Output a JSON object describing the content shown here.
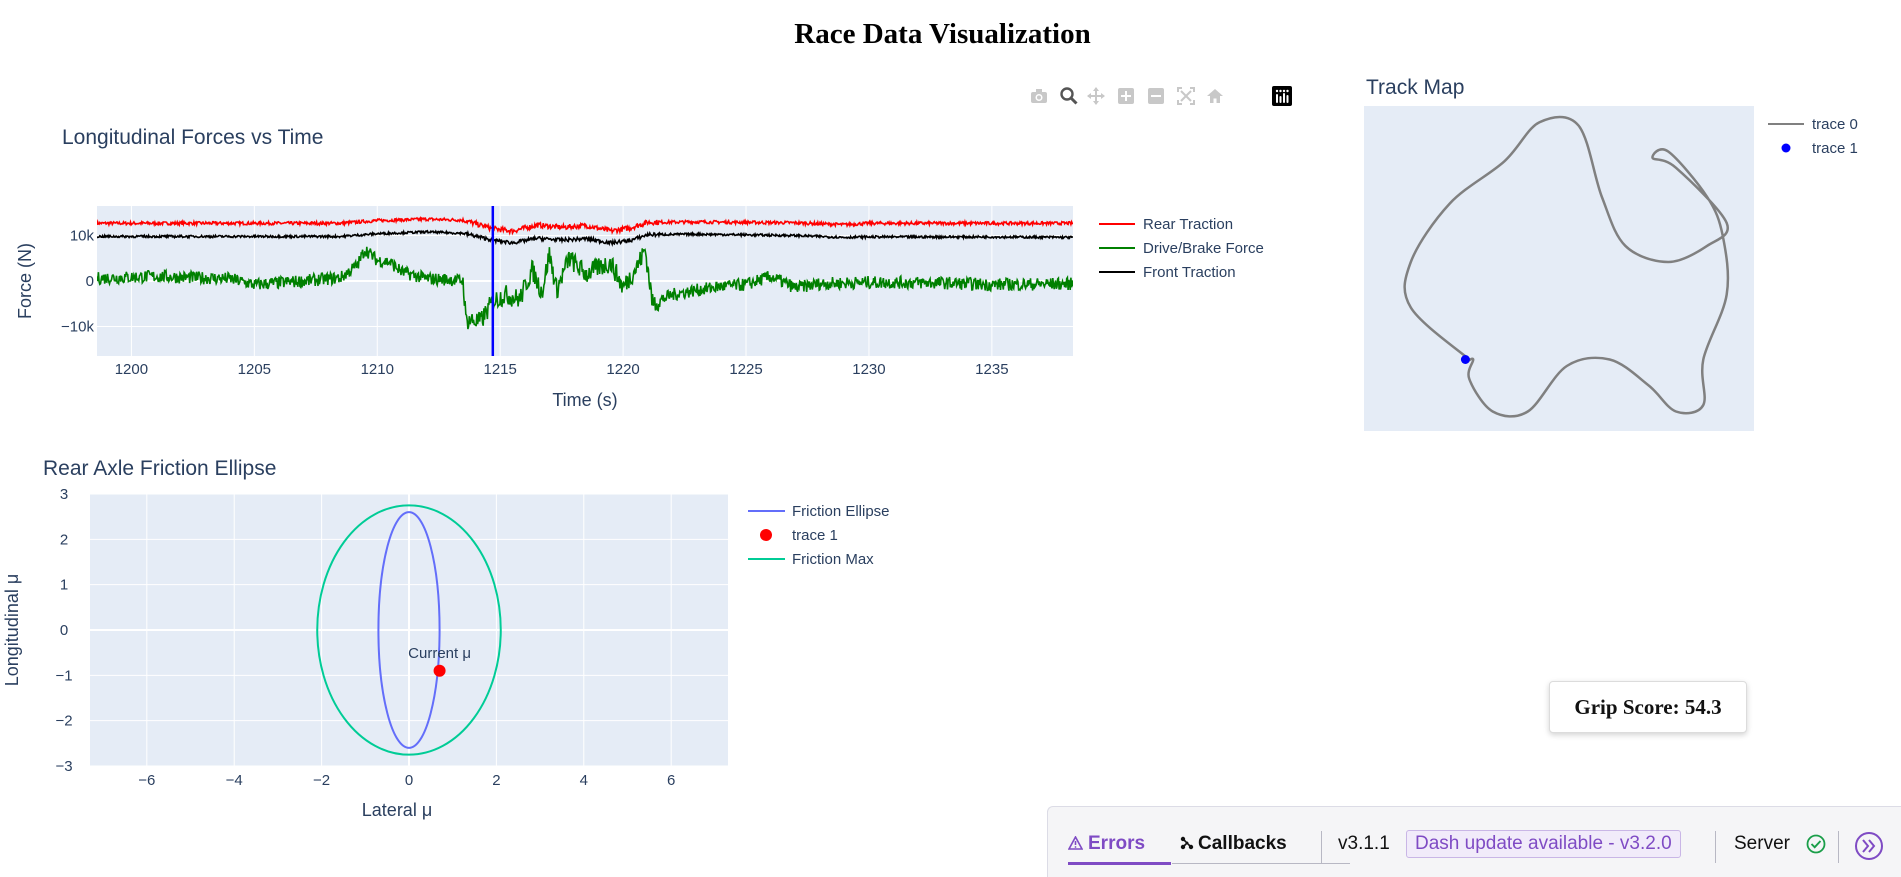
{
  "page": {
    "title": "Race Data Visualization"
  },
  "colors": {
    "accent": "#7f4bc4",
    "plot_bg": "#e5ecf6",
    "axis_text": "#2a3f5f"
  },
  "modebar": {
    "icons": [
      "camera-icon",
      "zoom-icon",
      "pan-icon",
      "zoom-in-icon",
      "zoom-out-icon",
      "autoscale-icon",
      "reset-axes-icon",
      "plotly-logo-icon"
    ]
  },
  "grip": {
    "label": "Grip Score: 54.3"
  },
  "devtools": {
    "errors_label": "Errors",
    "callbacks_label": "Callbacks",
    "version": "v3.1.1",
    "update_label": "Dash update available - v3.2.0",
    "server_label": "Server"
  },
  "chart_data": [
    {
      "type": "line",
      "title": "Longitudinal Forces vs Time",
      "xlabel": "Time (s)",
      "ylabel": "Force (N)",
      "xlim": [
        1198.6,
        1238.3
      ],
      "ylim": [
        -16500,
        16500
      ],
      "xticks": [
        1200,
        1205,
        1210,
        1215,
        1220,
        1225,
        1230,
        1235
      ],
      "yticks": [
        {
          "v": 10000,
          "label": "10k"
        },
        {
          "v": 0,
          "label": "0"
        },
        {
          "v": -10000,
          "label": "−10k"
        }
      ],
      "cursor_x": 1214.7,
      "legend_position": "right",
      "series": [
        {
          "name": "Rear Traction",
          "color": "#ff0000",
          "points": [
            [
              1198.6,
              12700
            ],
            [
              1208.5,
              12700
            ],
            [
              1210,
              13300
            ],
            [
              1212,
              13600
            ],
            [
              1213.5,
              13400
            ],
            [
              1214.7,
              11500
            ],
            [
              1215.5,
              11000
            ],
            [
              1216.5,
              12300
            ],
            [
              1217.5,
              11800
            ],
            [
              1218.5,
              12200
            ],
            [
              1219.5,
              11000
            ],
            [
              1220.3,
              11700
            ],
            [
              1221,
              12900
            ],
            [
              1223,
              13000
            ],
            [
              1227,
              12800
            ],
            [
              1229,
              12400
            ],
            [
              1230,
              12700
            ],
            [
              1235,
              12700
            ],
            [
              1238.3,
              12700
            ]
          ],
          "noise": 350
        },
        {
          "name": "Drive/Brake Force",
          "color": "#008000",
          "points": [
            [
              1198.6,
              600
            ],
            [
              1201,
              1000
            ],
            [
              1204,
              500
            ],
            [
              1205,
              -800
            ],
            [
              1207,
              0
            ],
            [
              1208.5,
              700
            ],
            [
              1209.2,
              3500
            ],
            [
              1209.5,
              7000
            ],
            [
              1210,
              4500
            ],
            [
              1210.5,
              4200
            ],
            [
              1211,
              2000
            ],
            [
              1212,
              500
            ],
            [
              1213,
              300
            ],
            [
              1213.5,
              0
            ],
            [
              1213.6,
              -8500
            ],
            [
              1214.2,
              -9000
            ],
            [
              1214.7,
              -4500
            ],
            [
              1215.2,
              -3000
            ],
            [
              1215.8,
              -4000
            ],
            [
              1216.3,
              2500
            ],
            [
              1216.7,
              -2500
            ],
            [
              1217,
              6000
            ],
            [
              1217.3,
              -2000
            ],
            [
              1217.8,
              5000
            ],
            [
              1218.5,
              1500
            ],
            [
              1219,
              3000
            ],
            [
              1219.5,
              4000
            ],
            [
              1220,
              -1500
            ],
            [
              1220.6,
              3500
            ],
            [
              1220.9,
              7000
            ],
            [
              1221.2,
              -5000
            ],
            [
              1222,
              -3000
            ],
            [
              1223,
              -2000
            ],
            [
              1224,
              -1200
            ],
            [
              1225,
              -800
            ],
            [
              1226,
              1000
            ],
            [
              1227,
              -1500
            ],
            [
              1228,
              -600
            ],
            [
              1230,
              -300
            ],
            [
              1233,
              -400
            ],
            [
              1235,
              -800
            ],
            [
              1238.3,
              -600
            ]
          ],
          "noise": 1400
        },
        {
          "name": "Front Traction",
          "color": "#000000",
          "points": [
            [
              1198.6,
              9800
            ],
            [
              1208.5,
              9800
            ],
            [
              1210,
              10400
            ],
            [
              1212,
              10800
            ],
            [
              1213.5,
              10500
            ],
            [
              1214.7,
              9000
            ],
            [
              1215.5,
              8400
            ],
            [
              1216.5,
              9400
            ],
            [
              1217.5,
              9000
            ],
            [
              1218.5,
              9300
            ],
            [
              1219.5,
              8400
            ],
            [
              1220.3,
              8900
            ],
            [
              1221,
              10200
            ],
            [
              1223,
              10300
            ],
            [
              1227,
              10000
            ],
            [
              1229,
              9600
            ],
            [
              1230,
              9700
            ],
            [
              1235,
              9700
            ],
            [
              1238.3,
              9600
            ]
          ],
          "noise": 250
        }
      ]
    },
    {
      "type": "line",
      "title": "Track Map",
      "legend_position": "right",
      "series": [
        {
          "name": "trace 0",
          "color": "#808080",
          "points": [
            [
              0.27,
              0.78
            ],
            [
              0.12,
              0.62
            ],
            [
              0.12,
              0.48
            ],
            [
              0.22,
              0.3
            ],
            [
              0.36,
              0.17
            ],
            [
              0.45,
              0.05
            ],
            [
              0.55,
              0.06
            ],
            [
              0.61,
              0.28
            ],
            [
              0.67,
              0.43
            ],
            [
              0.78,
              0.48
            ],
            [
              0.88,
              0.43
            ],
            [
              0.93,
              0.36
            ],
            [
              0.8,
              0.19
            ],
            [
              0.74,
              0.16
            ],
            [
              0.78,
              0.14
            ],
            [
              0.88,
              0.28
            ],
            [
              0.92,
              0.4
            ],
            [
              0.93,
              0.58
            ],
            [
              0.87,
              0.78
            ],
            [
              0.87,
              0.92
            ],
            [
              0.8,
              0.94
            ],
            [
              0.73,
              0.86
            ],
            [
              0.63,
              0.78
            ],
            [
              0.52,
              0.8
            ],
            [
              0.42,
              0.94
            ],
            [
              0.33,
              0.94
            ],
            [
              0.27,
              0.84
            ],
            [
              0.28,
              0.78
            ],
            [
              0.26,
              0.79
            ]
          ]
        },
        {
          "name": "trace 1",
          "color": "#0000ff",
          "points": [
            [
              0.26,
              0.78
            ]
          ]
        }
      ]
    },
    {
      "type": "scatter",
      "title": "Rear Axle Friction Ellipse",
      "xlabel": "Lateral μ",
      "ylabel": "Longitudinal μ",
      "xlim": [
        -7.3,
        7.3
      ],
      "ylim": [
        -3,
        3
      ],
      "xticks": [
        -6,
        -4,
        -2,
        0,
        2,
        4,
        6
      ],
      "yticks": [
        -3,
        -2,
        -1,
        0,
        1,
        2,
        3
      ],
      "legend_position": "right",
      "series": [
        {
          "name": "Friction Ellipse",
          "color": "#636efa",
          "ellipse": {
            "rx": 0.7,
            "ry": 2.6
          }
        },
        {
          "name": "trace 1",
          "color": "#ff0000",
          "points": [
            [
              0.7,
              -0.9
            ]
          ],
          "annotation": "Current μ"
        },
        {
          "name": "Friction Max",
          "color": "#00cc96",
          "ellipse": {
            "rx": 2.1,
            "ry": 2.75
          }
        }
      ]
    }
  ]
}
